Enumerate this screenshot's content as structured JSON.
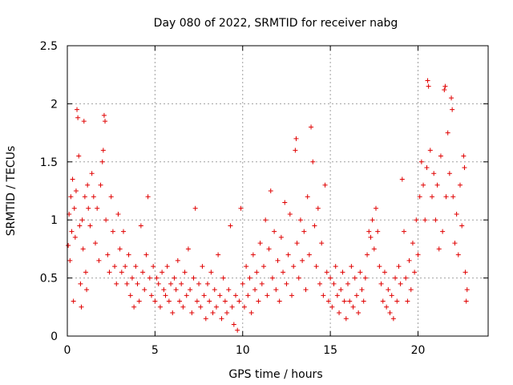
{
  "chart_data": {
    "type": "scatter",
    "title": "Day 080 of 2022, SRMTID for receiver nabg",
    "xlabel": "GPS time / hours",
    "ylabel": "SRMTID / TECUs",
    "xlim": [
      0,
      24
    ],
    "ylim": [
      0,
      2.5
    ],
    "xticks": [
      0,
      5,
      10,
      15,
      20
    ],
    "yticks": [
      0,
      0.5,
      1,
      1.5,
      2,
      2.5
    ],
    "xtick_labels": [
      "0",
      "5",
      "10",
      "15",
      "20"
    ],
    "ytick_labels": [
      "0",
      "0.5",
      "1",
      "1.5",
      "2",
      "2.5"
    ],
    "grid": true,
    "marker": "+",
    "color": "#e00000",
    "series": [
      {
        "name": "nabg",
        "points": [
          [
            0.05,
            0.78
          ],
          [
            0.1,
            1.05
          ],
          [
            0.15,
            0.65
          ],
          [
            0.2,
            1.2
          ],
          [
            0.25,
            0.9
          ],
          [
            0.3,
            1.35
          ],
          [
            0.35,
            0.3
          ],
          [
            0.4,
            1.1
          ],
          [
            0.45,
            0.85
          ],
          [
            0.5,
            1.25
          ],
          [
            0.55,
            1.95
          ],
          [
            0.6,
            1.88
          ],
          [
            0.65,
            1.55
          ],
          [
            0.7,
            0.95
          ],
          [
            0.75,
            0.45
          ],
          [
            0.8,
            0.25
          ],
          [
            0.85,
            1.0
          ],
          [
            0.9,
            0.75
          ],
          [
            0.95,
            1.85
          ],
          [
            1.0,
            1.2
          ],
          [
            1.05,
            0.55
          ],
          [
            1.1,
            0.4
          ],
          [
            1.15,
            1.3
          ],
          [
            1.2,
            1.1
          ],
          [
            1.3,
            0.95
          ],
          [
            1.4,
            1.4
          ],
          [
            1.5,
            1.2
          ],
          [
            1.6,
            0.8
          ],
          [
            1.7,
            1.1
          ],
          [
            1.8,
            0.65
          ],
          [
            1.9,
            1.3
          ],
          [
            2.0,
            1.5
          ],
          [
            2.05,
            1.6
          ],
          [
            2.1,
            1.9
          ],
          [
            2.15,
            1.85
          ],
          [
            2.2,
            1.0
          ],
          [
            2.3,
            0.7
          ],
          [
            2.4,
            0.55
          ],
          [
            2.5,
            1.2
          ],
          [
            2.6,
            0.9
          ],
          [
            2.7,
            0.6
          ],
          [
            2.8,
            0.45
          ],
          [
            2.9,
            1.05
          ],
          [
            3.0,
            0.75
          ],
          [
            3.1,
            0.55
          ],
          [
            3.2,
            0.9
          ],
          [
            3.3,
            0.6
          ],
          [
            3.4,
            0.45
          ],
          [
            3.5,
            0.7
          ],
          [
            3.6,
            0.35
          ],
          [
            3.7,
            0.5
          ],
          [
            3.8,
            0.25
          ],
          [
            3.9,
            0.6
          ],
          [
            4.0,
            0.45
          ],
          [
            4.1,
            0.3
          ],
          [
            4.2,
            0.95
          ],
          [
            4.3,
            0.55
          ],
          [
            4.4,
            0.4
          ],
          [
            4.5,
            0.7
          ],
          [
            4.6,
            1.2
          ],
          [
            4.7,
            0.5
          ],
          [
            4.8,
            0.35
          ],
          [
            4.9,
            0.6
          ],
          [
            5.0,
            0.3
          ],
          [
            5.1,
            0.5
          ],
          [
            5.2,
            0.45
          ],
          [
            5.3,
            0.25
          ],
          [
            5.4,
            0.55
          ],
          [
            5.5,
            0.4
          ],
          [
            5.6,
            0.35
          ],
          [
            5.7,
            0.6
          ],
          [
            5.8,
            0.3
          ],
          [
            5.9,
            0.45
          ],
          [
            6.0,
            0.2
          ],
          [
            6.1,
            0.5
          ],
          [
            6.2,
            0.4
          ],
          [
            6.3,
            0.65
          ],
          [
            6.4,
            0.3
          ],
          [
            6.5,
            0.45
          ],
          [
            6.6,
            0.25
          ],
          [
            6.7,
            0.55
          ],
          [
            6.8,
            0.35
          ],
          [
            6.9,
            0.75
          ],
          [
            7.0,
            0.4
          ],
          [
            7.1,
            0.2
          ],
          [
            7.2,
            0.5
          ],
          [
            7.3,
            1.1
          ],
          [
            7.4,
            0.3
          ],
          [
            7.5,
            0.45
          ],
          [
            7.6,
            0.25
          ],
          [
            7.7,
            0.6
          ],
          [
            7.8,
            0.35
          ],
          [
            7.9,
            0.15
          ],
          [
            8.0,
            0.45
          ],
          [
            8.1,
            0.3
          ],
          [
            8.2,
            0.55
          ],
          [
            8.3,
            0.2
          ],
          [
            8.4,
            0.4
          ],
          [
            8.5,
            0.25
          ],
          [
            8.6,
            0.7
          ],
          [
            8.7,
            0.35
          ],
          [
            8.8,
            0.15
          ],
          [
            8.9,
            0.5
          ],
          [
            9.0,
            0.3
          ],
          [
            9.1,
            0.2
          ],
          [
            9.2,
            0.4
          ],
          [
            9.3,
            0.95
          ],
          [
            9.4,
            0.25
          ],
          [
            9.5,
            0.1
          ],
          [
            9.6,
            0.35
          ],
          [
            9.7,
            0.05
          ],
          [
            9.8,
            0.3
          ],
          [
            9.9,
            1.1
          ],
          [
            10.0,
            0.45
          ],
          [
            10.1,
            0.25
          ],
          [
            10.2,
            0.6
          ],
          [
            10.3,
            0.35
          ],
          [
            10.4,
            0.5
          ],
          [
            10.5,
            0.2
          ],
          [
            10.6,
            0.7
          ],
          [
            10.7,
            0.4
          ],
          [
            10.8,
            0.55
          ],
          [
            10.9,
            0.3
          ],
          [
            11.0,
            0.8
          ],
          [
            11.1,
            0.45
          ],
          [
            11.2,
            0.6
          ],
          [
            11.3,
            1.0
          ],
          [
            11.4,
            0.35
          ],
          [
            11.5,
            0.75
          ],
          [
            11.6,
            1.25
          ],
          [
            11.7,
            0.5
          ],
          [
            11.8,
            0.9
          ],
          [
            11.9,
            0.4
          ],
          [
            12.0,
            0.65
          ],
          [
            12.1,
            0.3
          ],
          [
            12.2,
            0.85
          ],
          [
            12.3,
            0.55
          ],
          [
            12.4,
            1.15
          ],
          [
            12.5,
            0.45
          ],
          [
            12.6,
            0.7
          ],
          [
            12.7,
            1.05
          ],
          [
            12.8,
            0.35
          ],
          [
            12.9,
            0.6
          ],
          [
            13.0,
            1.6
          ],
          [
            13.05,
            1.7
          ],
          [
            13.1,
            0.8
          ],
          [
            13.2,
            0.5
          ],
          [
            13.3,
            1.0
          ],
          [
            13.4,
            0.65
          ],
          [
            13.5,
            0.9
          ],
          [
            13.6,
            0.4
          ],
          [
            13.7,
            1.2
          ],
          [
            13.8,
            0.7
          ],
          [
            13.9,
            1.8
          ],
          [
            14.0,
            1.5
          ],
          [
            14.1,
            0.95
          ],
          [
            14.2,
            0.6
          ],
          [
            14.3,
            1.1
          ],
          [
            14.4,
            0.45
          ],
          [
            14.5,
            0.8
          ],
          [
            14.6,
            0.35
          ],
          [
            14.7,
            1.3
          ],
          [
            14.8,
            0.55
          ],
          [
            14.9,
            0.3
          ],
          [
            15.0,
            0.5
          ],
          [
            15.1,
            0.25
          ],
          [
            15.2,
            0.45
          ],
          [
            15.3,
            0.6
          ],
          [
            15.4,
            0.35
          ],
          [
            15.5,
            0.2
          ],
          [
            15.6,
            0.4
          ],
          [
            15.7,
            0.55
          ],
          [
            15.8,
            0.3
          ],
          [
            15.9,
            0.15
          ],
          [
            16.0,
            0.45
          ],
          [
            16.1,
            0.3
          ],
          [
            16.2,
            0.6
          ],
          [
            16.3,
            0.25
          ],
          [
            16.4,
            0.5
          ],
          [
            16.5,
            0.35
          ],
          [
            16.6,
            0.2
          ],
          [
            16.7,
            0.55
          ],
          [
            16.8,
            0.4
          ],
          [
            16.9,
            0.3
          ],
          [
            17.0,
            0.5
          ],
          [
            17.1,
            0.7
          ],
          [
            17.2,
            0.9
          ],
          [
            17.3,
            0.85
          ],
          [
            17.4,
            1.0
          ],
          [
            17.5,
            0.75
          ],
          [
            17.6,
            1.1
          ],
          [
            17.7,
            0.9
          ],
          [
            17.8,
            0.6
          ],
          [
            17.9,
            0.45
          ],
          [
            18.0,
            0.3
          ],
          [
            18.1,
            0.55
          ],
          [
            18.2,
            0.25
          ],
          [
            18.3,
            0.4
          ],
          [
            18.4,
            0.2
          ],
          [
            18.5,
            0.35
          ],
          [
            18.6,
            0.15
          ],
          [
            18.7,
            0.5
          ],
          [
            18.8,
            0.3
          ],
          [
            18.9,
            0.6
          ],
          [
            19.0,
            0.45
          ],
          [
            19.1,
            1.35
          ],
          [
            19.2,
            0.9
          ],
          [
            19.3,
            0.5
          ],
          [
            19.4,
            0.3
          ],
          [
            19.5,
            0.65
          ],
          [
            19.6,
            0.4
          ],
          [
            19.7,
            0.8
          ],
          [
            19.8,
            0.55
          ],
          [
            19.9,
            1.0
          ],
          [
            20.0,
            0.7
          ],
          [
            20.1,
            1.2
          ],
          [
            20.2,
            1.5
          ],
          [
            20.3,
            1.3
          ],
          [
            20.4,
            1.0
          ],
          [
            20.5,
            1.45
          ],
          [
            20.55,
            2.2
          ],
          [
            20.6,
            2.15
          ],
          [
            20.7,
            1.6
          ],
          [
            20.8,
            1.2
          ],
          [
            20.9,
            1.4
          ],
          [
            21.0,
            1.0
          ],
          [
            21.1,
            1.3
          ],
          [
            21.2,
            0.75
          ],
          [
            21.3,
            1.55
          ],
          [
            21.4,
            0.9
          ],
          [
            21.5,
            2.12
          ],
          [
            21.55,
            2.15
          ],
          [
            21.6,
            1.2
          ],
          [
            21.7,
            1.75
          ],
          [
            21.8,
            1.4
          ],
          [
            21.9,
            2.05
          ],
          [
            21.95,
            1.95
          ],
          [
            22.0,
            1.2
          ],
          [
            22.1,
            0.8
          ],
          [
            22.2,
            1.05
          ],
          [
            22.3,
            0.7
          ],
          [
            22.4,
            1.3
          ],
          [
            22.5,
            0.95
          ],
          [
            22.6,
            1.55
          ],
          [
            22.65,
            1.45
          ],
          [
            22.7,
            0.55
          ],
          [
            22.75,
            0.3
          ],
          [
            22.8,
            0.4
          ]
        ]
      }
    ]
  }
}
